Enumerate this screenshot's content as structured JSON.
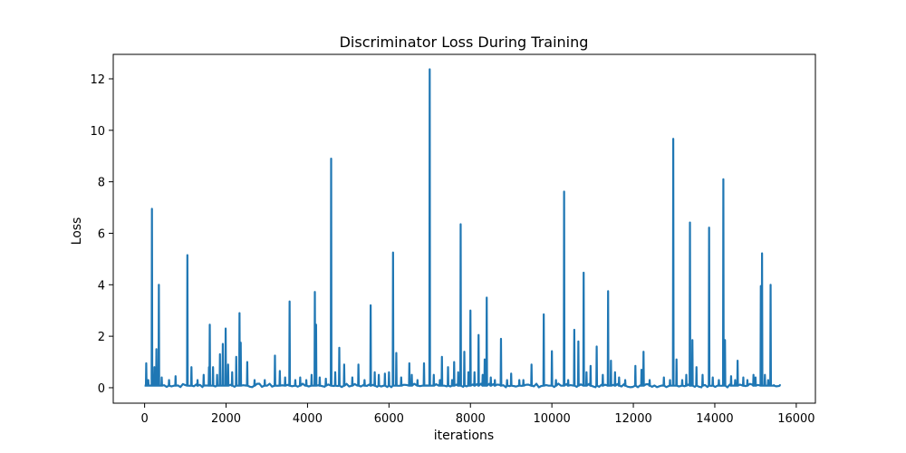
{
  "chart_data": {
    "type": "line",
    "title": "Discriminator Loss During Training",
    "xlabel": "iterations",
    "ylabel": "Loss",
    "xlim": [
      -770,
      16470
    ],
    "ylim": [
      -0.6,
      12.95
    ],
    "xticks": [
      0,
      2000,
      4000,
      6000,
      8000,
      10000,
      12000,
      14000,
      16000
    ],
    "yticks": [
      0,
      2,
      4,
      6,
      8,
      10,
      12
    ],
    "grid": false,
    "legend": "none",
    "series_color": "#1f77b4",
    "baseline": 0.08,
    "x_max": 15650,
    "spikes": [
      [
        40,
        0.95
      ],
      [
        90,
        0.3
      ],
      [
        180,
        6.95
      ],
      [
        240,
        0.8
      ],
      [
        290,
        1.5
      ],
      [
        350,
        4.0
      ],
      [
        420,
        0.4
      ],
      [
        600,
        0.3
      ],
      [
        760,
        0.45
      ],
      [
        1050,
        5.15
      ],
      [
        1150,
        0.8
      ],
      [
        1300,
        0.3
      ],
      [
        1450,
        0.5
      ],
      [
        1580,
        0.8
      ],
      [
        1600,
        2.45
      ],
      [
        1680,
        0.8
      ],
      [
        1780,
        0.5
      ],
      [
        1850,
        1.3
      ],
      [
        1920,
        1.7
      ],
      [
        1990,
        2.3
      ],
      [
        2050,
        0.9
      ],
      [
        2150,
        0.6
      ],
      [
        2250,
        1.2
      ],
      [
        2330,
        2.9
      ],
      [
        2360,
        1.75
      ],
      [
        2520,
        1.0
      ],
      [
        2700,
        0.3
      ],
      [
        2950,
        0.3
      ],
      [
        3200,
        1.25
      ],
      [
        3320,
        0.65
      ],
      [
        3450,
        0.4
      ],
      [
        3560,
        3.35
      ],
      [
        3700,
        0.3
      ],
      [
        3820,
        0.4
      ],
      [
        3970,
        0.3
      ],
      [
        4100,
        0.5
      ],
      [
        4180,
        3.72
      ],
      [
        4210,
        2.45
      ],
      [
        4300,
        0.4
      ],
      [
        4450,
        0.35
      ],
      [
        4580,
        8.9
      ],
      [
        4680,
        0.6
      ],
      [
        4780,
        1.55
      ],
      [
        4900,
        0.9
      ],
      [
        5100,
        0.4
      ],
      [
        5250,
        0.9
      ],
      [
        5400,
        0.3
      ],
      [
        5550,
        3.2
      ],
      [
        5650,
        0.6
      ],
      [
        5750,
        0.5
      ],
      [
        5900,
        0.55
      ],
      [
        6000,
        0.6
      ],
      [
        6100,
        5.25
      ],
      [
        6180,
        1.35
      ],
      [
        6300,
        0.4
      ],
      [
        6500,
        0.95
      ],
      [
        6560,
        0.5
      ],
      [
        6700,
        0.3
      ],
      [
        6860,
        0.95
      ],
      [
        7000,
        12.37
      ],
      [
        7100,
        0.5
      ],
      [
        7250,
        0.3
      ],
      [
        7300,
        1.2
      ],
      [
        7450,
        0.8
      ],
      [
        7550,
        0.3
      ],
      [
        7600,
        1.0
      ],
      [
        7700,
        0.6
      ],
      [
        7760,
        6.35
      ],
      [
        7850,
        1.4
      ],
      [
        7950,
        0.6
      ],
      [
        8000,
        3.0
      ],
      [
        8100,
        0.6
      ],
      [
        8200,
        2.05
      ],
      [
        8300,
        0.5
      ],
      [
        8350,
        1.1
      ],
      [
        8400,
        3.5
      ],
      [
        8500,
        0.4
      ],
      [
        8600,
        0.3
      ],
      [
        8750,
        1.9
      ],
      [
        8900,
        0.3
      ],
      [
        9000,
        0.55
      ],
      [
        9200,
        0.3
      ],
      [
        9300,
        0.3
      ],
      [
        9500,
        0.9
      ],
      [
        9800,
        2.85
      ],
      [
        10000,
        1.42
      ],
      [
        10100,
        0.3
      ],
      [
        10300,
        7.62
      ],
      [
        10400,
        0.3
      ],
      [
        10550,
        2.25
      ],
      [
        10650,
        1.8
      ],
      [
        10780,
        4.47
      ],
      [
        10850,
        0.6
      ],
      [
        10950,
        0.85
      ],
      [
        11100,
        1.6
      ],
      [
        11250,
        0.5
      ],
      [
        11380,
        3.75
      ],
      [
        11450,
        1.05
      ],
      [
        11550,
        0.6
      ],
      [
        11650,
        0.4
      ],
      [
        11800,
        0.3
      ],
      [
        12050,
        0.85
      ],
      [
        12200,
        0.7
      ],
      [
        12250,
        1.4
      ],
      [
        12400,
        0.3
      ],
      [
        12750,
        0.4
      ],
      [
        12900,
        0.3
      ],
      [
        12980,
        9.67
      ],
      [
        13060,
        1.1
      ],
      [
        13200,
        0.3
      ],
      [
        13300,
        0.5
      ],
      [
        13390,
        6.42
      ],
      [
        13450,
        1.85
      ],
      [
        13550,
        0.8
      ],
      [
        13700,
        0.5
      ],
      [
        13860,
        6.22
      ],
      [
        13950,
        0.4
      ],
      [
        14100,
        0.3
      ],
      [
        14210,
        8.1
      ],
      [
        14250,
        1.85
      ],
      [
        14400,
        0.45
      ],
      [
        14500,
        0.3
      ],
      [
        14560,
        1.05
      ],
      [
        14700,
        0.4
      ],
      [
        14800,
        0.3
      ],
      [
        14950,
        0.5
      ],
      [
        15000,
        0.4
      ],
      [
        15130,
        3.95
      ],
      [
        15160,
        5.22
      ],
      [
        15230,
        0.5
      ],
      [
        15310,
        0.3
      ],
      [
        15370,
        4.0
      ],
      [
        15450,
        0.1
      ],
      [
        15600,
        0.1
      ]
    ]
  }
}
